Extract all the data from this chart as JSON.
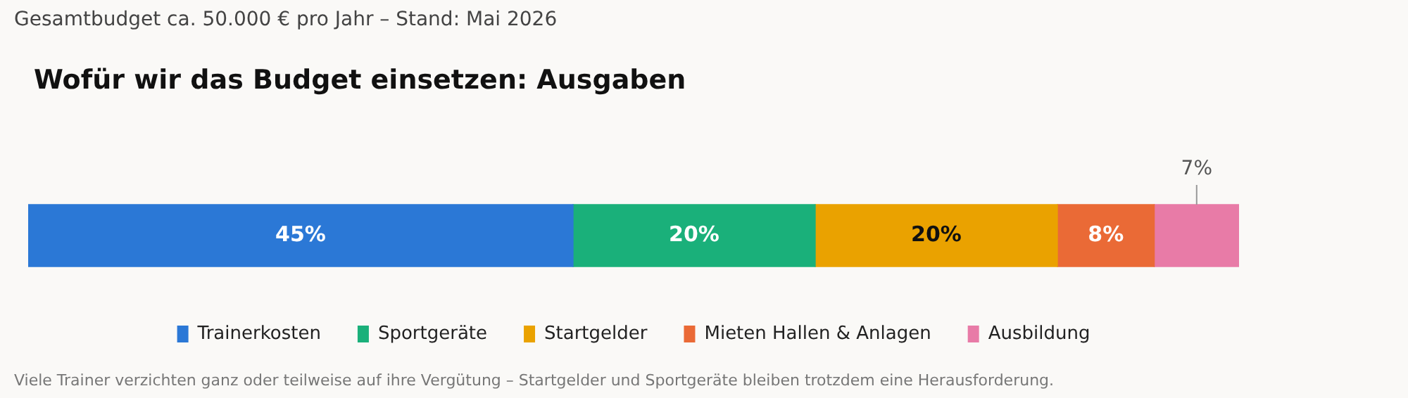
{
  "chart_data": {
    "type": "bar",
    "orientation": "horizontal",
    "stacked": true,
    "title": "Wofür wir das Budget einsetzen: Ausgaben",
    "subtitle": "Gesamtbudget ca. 50.000 € pro Jahr – Stand: Mai 2026",
    "annotations": [
      "Viele Trainer verzichten ganz oder teilweise auf ihre Vergütung – Startgelder und Sportgeräte bleiben trotzdem eine Herausforderung."
    ],
    "categories": [
      null
    ],
    "series": [
      {
        "name": "Trainerkosten",
        "color": "#2b78d6",
        "values": [
          45
        ],
        "value_labels": [
          "45%"
        ]
      },
      {
        "name": "Sportgeräte",
        "color": "#1ab07a",
        "values": [
          20
        ],
        "value_labels": [
          "20%"
        ]
      },
      {
        "name": "Startgelder",
        "color": "#eaa200",
        "values": [
          20
        ],
        "value_labels": [
          "20%"
        ]
      },
      {
        "name": "Mieten Hallen & Anlagen",
        "color": "#ea6a36",
        "values": [
          8
        ],
        "value_labels": [
          "8%"
        ]
      },
      {
        "name": "Ausbildung",
        "color": "#e87ba7",
        "values": [
          7
        ],
        "value_labels": [
          "7%"
        ]
      }
    ],
    "data_labels": true,
    "legend": "bottom"
  }
}
